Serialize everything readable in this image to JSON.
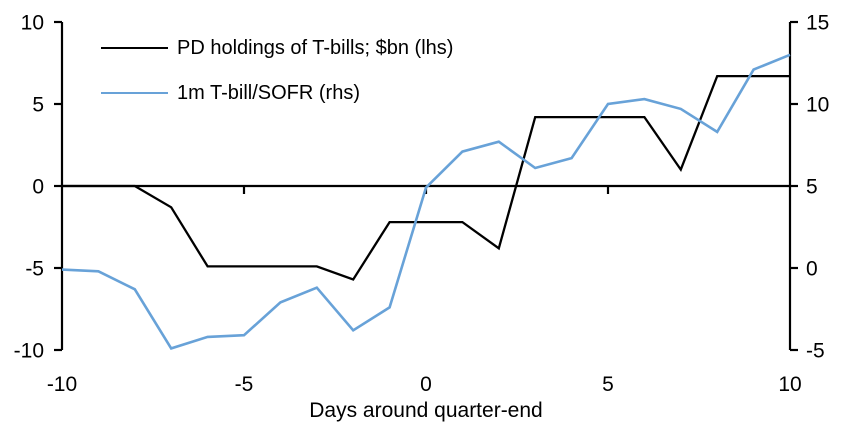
{
  "chart_data": {
    "type": "line",
    "title": "",
    "xlabel": "Days around quarter-end",
    "grid": false,
    "legend_position": "top-left",
    "x": [
      -10,
      -9,
      -8,
      -7,
      -6,
      -5,
      -4,
      -3,
      -2,
      -1,
      0,
      1,
      2,
      3,
      4,
      5,
      6,
      7,
      8,
      9,
      10
    ],
    "series": [
      {
        "name": "PD holdings of T-bills; $bn (lhs)",
        "axis": "left",
        "color": "#000000",
        "values": [
          0,
          0,
          0,
          -1.3,
          -4.9,
          -4.9,
          -4.9,
          -4.9,
          -5.7,
          -2.2,
          -2.2,
          -2.2,
          -3.8,
          4.2,
          4.2,
          4.2,
          4.2,
          1.0,
          6.7,
          6.7,
          6.7
        ]
      },
      {
        "name": "1m T-bill/SOFR (rhs)",
        "axis": "right",
        "color": "#68A2D8",
        "values": [
          -0.1,
          -0.2,
          -1.3,
          -4.9,
          -4.2,
          -4.1,
          -2.1,
          -1.2,
          -3.8,
          -2.4,
          4.9,
          7.1,
          7.7,
          6.1,
          6.7,
          10.0,
          10.3,
          9.7,
          8.3,
          12.1,
          13.0
        ]
      }
    ],
    "axes": {
      "left": {
        "min": -10,
        "max": 10,
        "ticks": [
          10,
          5,
          0,
          -5,
          -10
        ]
      },
      "right": {
        "min": -5,
        "max": 15,
        "ticks": [
          15,
          10,
          5,
          0,
          -5
        ]
      },
      "x": {
        "min": -10,
        "max": 10,
        "ticks": [
          -10,
          -5,
          0,
          5,
          10
        ],
        "axis_at": 0
      }
    }
  }
}
